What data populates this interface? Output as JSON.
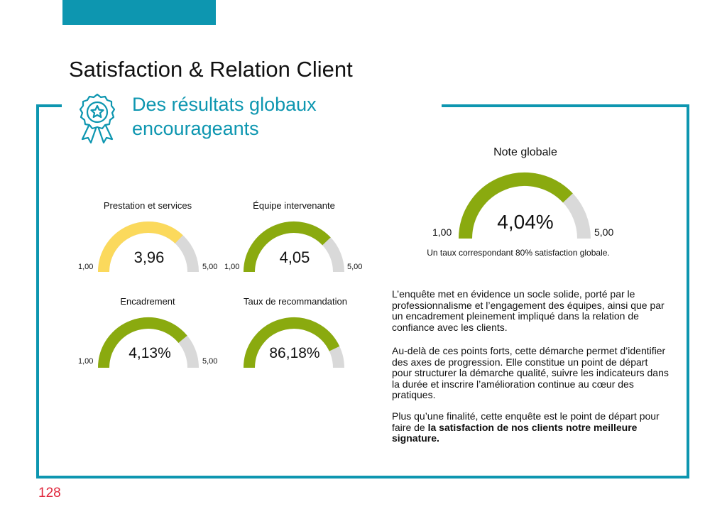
{
  "page": {
    "title": "Satisfaction & Relation Client",
    "subtitle_line1": "Des résultats globaux",
    "subtitle_line2": "encourageants",
    "page_number": "128"
  },
  "colors": {
    "accent": "#0d96b0",
    "gauge_green": "#8aaa0f",
    "gauge_yellow": "#fbd95c",
    "gauge_track": "#d9d9d9",
    "page_number": "#e0243a"
  },
  "gauges": [
    {
      "label": "Prestation et services",
      "value": "3,96",
      "min": "1,00",
      "max": "5,00",
      "fill": 0.74,
      "color": "#fbd95c"
    },
    {
      "label": "Équipe intervenante",
      "value": "4,05",
      "min": "1,00",
      "max": "5,00",
      "fill": 0.76,
      "color": "#8aaa0f"
    },
    {
      "label": "Encadrement",
      "value": "4,13%",
      "min": "1,00",
      "max": "5,00",
      "fill": 0.78,
      "color": "#8aaa0f"
    },
    {
      "label": "Taux de recommandation",
      "value": "86,18%",
      "min": "",
      "max": "",
      "fill": 0.86,
      "color": "#8aaa0f"
    },
    {
      "label": "Note globale",
      "value": "4,04%",
      "min": "1,00",
      "max": "5,00",
      "fill": 0.76,
      "color": "#8aaa0f"
    }
  ],
  "global_note": "Un taux correspondant 80% satisfaction globale.",
  "paragraphs": {
    "p1": "L’enquête met en évidence un socle solide, porté par le professionnalisme et l’engagement des équipes, ainsi que par un encadrement pleinement impliqué dans la relation de confiance avec les clients.",
    "p2": "Au-delà de ces points forts, cette démarche permet d’identifier des axes de progression. Elle constitue un point de départ pour structurer la démarche qualité, suivre les indicateurs dans la durée et inscrire l’amélioration continue au cœur des pratiques.",
    "p3_normal": "Plus qu’une finalité, cette enquête est le point de départ pour faire de ",
    "p3_bold": "la satisfaction de nos clients notre meilleure signature."
  }
}
